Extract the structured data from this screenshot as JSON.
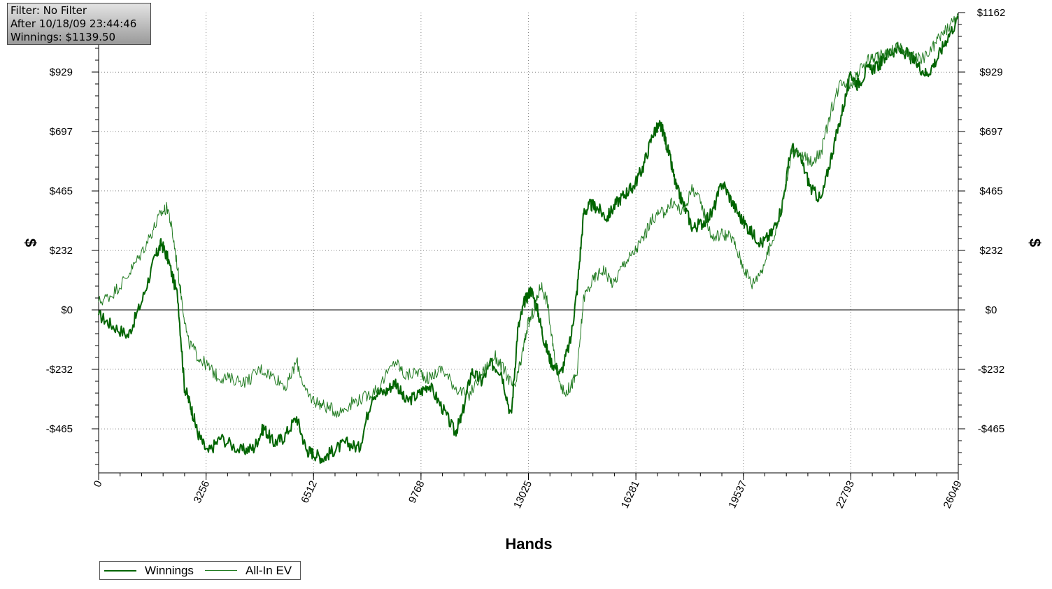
{
  "info_box": {
    "filter": "Filter: No Filter",
    "after": "After 10/18/09 23:44:46",
    "winnings": "Winnings: $1139.50"
  },
  "chart_data": {
    "type": "line",
    "xlabel": "Hands",
    "ylabel": "$",
    "xlim": [
      0,
      26049
    ],
    "ylim": [
      -640,
      1162
    ],
    "x_ticks": [
      "0",
      "3256",
      "6512",
      "9768",
      "13025",
      "16281",
      "19537",
      "22793",
      "26049"
    ],
    "y_ticks": [
      {
        "value": 1162,
        "label": "$1162"
      },
      {
        "value": 929,
        "label": "$929"
      },
      {
        "value": 697,
        "label": "$697"
      },
      {
        "value": 465,
        "label": "$465"
      },
      {
        "value": 232,
        "label": "$232"
      },
      {
        "value": 0,
        "label": "$0"
      },
      {
        "value": -232,
        "label": "-$232"
      },
      {
        "value": -465,
        "label": "-$465"
      }
    ],
    "grid": true,
    "legend_placement": "bottom-left",
    "series": [
      {
        "name": "Winnings",
        "color": "#006400",
        "x": [
          0,
          400,
          900,
          1300,
          1700,
          1900,
          2100,
          2400,
          2600,
          2800,
          3000,
          3300,
          3700,
          4300,
          4700,
          5000,
          5300,
          5600,
          6000,
          6300,
          6500,
          6800,
          7100,
          7500,
          7900,
          8300,
          8700,
          9000,
          9300,
          9700,
          10000,
          10400,
          10800,
          11000,
          11300,
          11600,
          11900,
          12200,
          12500,
          12700,
          12900,
          13100,
          13300,
          13500,
          13700,
          14000,
          14300,
          14500,
          14700,
          14900,
          15100,
          15400,
          15700,
          16000,
          16200,
          16500,
          16800,
          17000,
          17100,
          17300,
          17500,
          17700,
          18000,
          18300,
          18600,
          18900,
          19200,
          19500,
          19800,
          20100,
          20400,
          20700,
          21000,
          21300,
          21600,
          21900,
          22200,
          22500,
          22800,
          23000,
          23300,
          23600,
          23900,
          24200,
          24500,
          24800,
          25100,
          25400,
          25700,
          26049
        ],
        "values": [
          -20,
          -60,
          -100,
          30,
          200,
          260,
          200,
          50,
          -300,
          -380,
          -480,
          -560,
          -500,
          -550,
          -540,
          -460,
          -520,
          -500,
          -420,
          -550,
          -560,
          -580,
          -550,
          -520,
          -540,
          -330,
          -320,
          -280,
          -360,
          -330,
          -290,
          -380,
          -480,
          -420,
          -240,
          -280,
          -210,
          -240,
          -420,
          -80,
          30,
          80,
          0,
          -120,
          -200,
          -250,
          -120,
          80,
          380,
          410,
          400,
          360,
          420,
          460,
          480,
          560,
          690,
          720,
          700,
          600,
          480,
          420,
          320,
          340,
          380,
          500,
          420,
          350,
          300,
          260,
          300,
          400,
          640,
          580,
          470,
          430,
          600,
          760,
          920,
          880,
          940,
          950,
          1000,
          1020,
          1000,
          960,
          920,
          980,
          1060,
          1140
        ]
      },
      {
        "name": "All-In EV",
        "color": "#1f7a1f",
        "x": [
          0,
          400,
          800,
          1200,
          1600,
          1900,
          2100,
          2300,
          2500,
          2700,
          3000,
          3300,
          3600,
          4000,
          4500,
          4900,
          5300,
          5700,
          6000,
          6300,
          6600,
          6900,
          7300,
          7700,
          8100,
          8500,
          9000,
          9300,
          9700,
          10000,
          10400,
          10800,
          11200,
          11600,
          12000,
          12300,
          12600,
          12800,
          13000,
          13200,
          13400,
          13600,
          13800,
          14100,
          14300,
          14500,
          14700,
          15000,
          15300,
          15600,
          15900,
          16200,
          16500,
          16800,
          17100,
          17400,
          17700,
          18000,
          18300,
          18600,
          18900,
          19200,
          19500,
          19800,
          20100,
          20400,
          20700,
          21000,
          21300,
          21600,
          21900,
          22200,
          22500,
          22800,
          23000,
          23300,
          23600,
          23900,
          24200,
          24500,
          24800,
          25100,
          25400,
          25700,
          26049
        ],
        "values": [
          30,
          60,
          120,
          200,
          300,
          380,
          400,
          250,
          60,
          -120,
          -180,
          -220,
          -260,
          -270,
          -280,
          -230,
          -260,
          -300,
          -200,
          -330,
          -360,
          -380,
          -400,
          -360,
          -340,
          -300,
          -200,
          -260,
          -240,
          -270,
          -230,
          -300,
          -340,
          -250,
          -180,
          -240,
          -310,
          -200,
          -60,
          0,
          100,
          30,
          -180,
          -330,
          -300,
          -250,
          50,
          120,
          160,
          100,
          180,
          220,
          280,
          360,
          380,
          420,
          380,
          480,
          400,
          280,
          300,
          280,
          180,
          100,
          160,
          260,
          400,
          620,
          600,
          580,
          620,
          780,
          900,
          880,
          920,
          980,
          990,
          1000,
          1030,
          1000,
          980,
          990,
          1050,
          1100,
          1150
        ]
      }
    ]
  }
}
